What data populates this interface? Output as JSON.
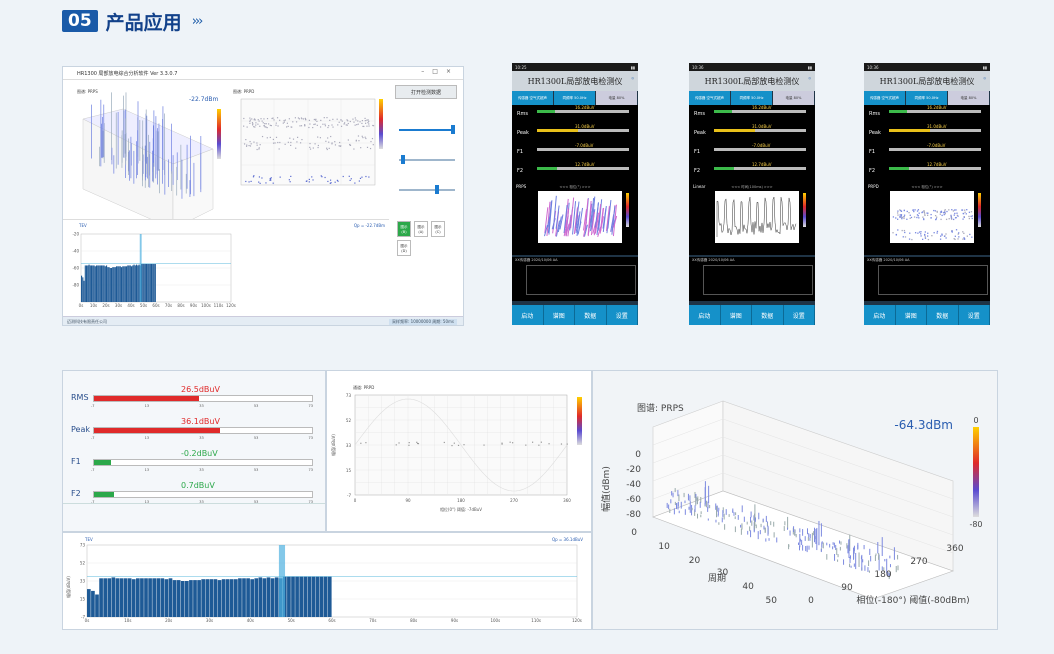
{
  "header": {
    "number": "05",
    "title": "产品应用",
    "arrows": "›››"
  },
  "desktop_app": {
    "window_title": "HR1300 局部放电综合分析软件 Ver 3.3.0.7",
    "top_left_label": "图谱: PRPS",
    "top_left_value": "-22.7dBm",
    "top_right_label": "图谱: PRPD",
    "open_button": "打开检测数据",
    "bottom_label": "TEV",
    "bottom_value": "Qp = -22.7dBm",
    "side_buttons": [
      "图示(B)",
      "图示(A)",
      "图示(C)",
      "图示(D)"
    ],
    "footer_left": "迈测科技有限责任公司",
    "footer_right": "采样频率: 10000000   周期: 50ms"
  },
  "phones": [
    {
      "status_time": "10:25",
      "title": "HR1300L局部放电检测仪",
      "tabs": [
        "传感器 空气式超声",
        "同频率 50.0Hz",
        "电量 80%"
      ],
      "mode": "PRPS",
      "rows": [
        {
          "label": "Rms",
          "value": "16.2dBuV",
          "fill": 0.2,
          "color": "#3cba4a"
        },
        {
          "label": "Peak",
          "value": "31.0dBuV",
          "fill": 0.45,
          "color": "#e8c01a"
        },
        {
          "label": "F1",
          "value": "-7.0dBuV",
          "fill": 0.0,
          "color": "#3cba4a"
        },
        {
          "label": "F2",
          "value": "12.7dBuV",
          "fill": 0.22,
          "color": "#3cba4a"
        }
      ],
      "sub": "<<<  相位(°)  >>>",
      "mini_label": "XX传感器 2020/10/06 AA",
      "buttons": [
        "启动",
        "谱图",
        "数据",
        "设置"
      ]
    },
    {
      "status_time": "10:36",
      "title": "HR1300L局部放电检测仪",
      "tabs": [
        "传感器 空气式超声",
        "同频率 50.0Hz",
        "电量 80%"
      ],
      "mode": "Linear",
      "rows": [
        {
          "label": "Rms",
          "value": "16.2dBuV",
          "fill": 0.2,
          "color": "#3cba4a"
        },
        {
          "label": "Peak",
          "value": "31.0dBuV",
          "fill": 0.45,
          "color": "#e8c01a"
        },
        {
          "label": "F1",
          "value": "-7.0dBuV",
          "fill": 0.0,
          "color": "#3cba4a"
        },
        {
          "label": "F2",
          "value": "12.7dBuV",
          "fill": 0.22,
          "color": "#3cba4a"
        }
      ],
      "sub": "<<<  时间(100ms)  >>>",
      "mini_label": "XX传感器 2020/10/06 AA",
      "buttons": [
        "启动",
        "谱图",
        "数据",
        "设置"
      ]
    },
    {
      "status_time": "10:36",
      "title": "HR1300L局部放电检测仪",
      "tabs": [
        "传感器 空气式超声",
        "同频率 50.0Hz",
        "电量 80%"
      ],
      "mode": "PRPD",
      "rows": [
        {
          "label": "Rms",
          "value": "16.2dBuV",
          "fill": 0.2,
          "color": "#3cba4a"
        },
        {
          "label": "Peak",
          "value": "31.0dBuV",
          "fill": 0.45,
          "color": "#e8c01a"
        },
        {
          "label": "F1",
          "value": "-7.0dBuV",
          "fill": 0.0,
          "color": "#3cba4a"
        },
        {
          "label": "F2",
          "value": "12.7dBuV",
          "fill": 0.22,
          "color": "#3cba4a"
        }
      ],
      "sub": "<<<  相位(°)  >>>",
      "mini_label": "XX传感器 2020/10/06 AA",
      "buttons": [
        "启动",
        "谱图",
        "数据",
        "设置"
      ]
    }
  ],
  "meters": [
    {
      "label": "RMS",
      "value": "26.5dBuV",
      "fill": 0.48,
      "color": "#e02a2a",
      "value_color": "#e02a2a"
    },
    {
      "label": "Peak",
      "value": "36.1dBuV",
      "fill": 0.58,
      "color": "#e02a2a",
      "value_color": "#e02a2a"
    },
    {
      "label": "F1",
      "value": "-0.2dBuV",
      "fill": 0.08,
      "color": "#2ca84a",
      "value_color": "#2ca84a"
    },
    {
      "label": "F2",
      "value": "0.7dBuV",
      "fill": 0.09,
      "color": "#2ca84a",
      "value_color": "#2ca84a"
    }
  ],
  "meter_ticks": [
    "-7",
    "13",
    "33",
    "53",
    "73"
  ],
  "prpd_panel": {
    "label": "通道: PRPD",
    "xlabel": "相位(0°) 阈值: -7dBuV",
    "yticks": [
      "73",
      "52",
      "33",
      "15",
      "-7"
    ],
    "xticks": [
      "0",
      "90",
      "180",
      "270",
      "360"
    ],
    "ylabel": "幅值(dBuV)"
  },
  "bar_panel": {
    "label": "TEV",
    "value": "Qp = 36.1dBuV",
    "ylabel": "幅值(dBuV)",
    "yticks": [
      "73",
      "52",
      "33",
      "15",
      "-7"
    ],
    "xticks": [
      "0s",
      "10s",
      "20s",
      "30s",
      "40s",
      "50s",
      "60s",
      "70s",
      "80s",
      "90s",
      "100s",
      "110s",
      "120s"
    ]
  },
  "prps_3d": {
    "label": "图谱: PRPS",
    "value": "-64.3dBm",
    "zlabel": "幅值(dBm)",
    "zticks": [
      "0",
      "-20",
      "-40",
      "-60",
      "-80"
    ],
    "period_label": "周期",
    "period_ticks": [
      "0",
      "10",
      "20",
      "30",
      "40",
      "50"
    ],
    "phase_ticks": [
      "0",
      "90",
      "180",
      "270",
      "360"
    ],
    "phase_label": "相位(-180°) 阈值(-80dBm)",
    "colorbar_ticks": [
      "0",
      "-80"
    ]
  },
  "chart_data": [
    {
      "type": "bar",
      "title": "TEV",
      "xlabel": "",
      "ylabel": "幅值(dBuV)",
      "ylim": [
        -7,
        73
      ],
      "values": [
        24,
        22,
        18,
        36,
        36,
        36,
        37,
        36,
        36,
        36,
        36,
        35,
        36,
        36,
        36,
        36,
        36,
        36,
        36,
        35,
        36,
        34,
        34,
        33,
        33,
        34,
        34,
        34,
        35,
        35,
        35,
        35,
        34,
        35,
        35,
        35,
        35,
        36,
        36,
        36,
        35,
        36,
        37,
        36,
        37,
        36,
        37,
        36,
        38,
        38,
        38,
        38,
        38,
        38,
        38,
        38,
        38,
        38,
        38,
        38
      ]
    }
  ]
}
